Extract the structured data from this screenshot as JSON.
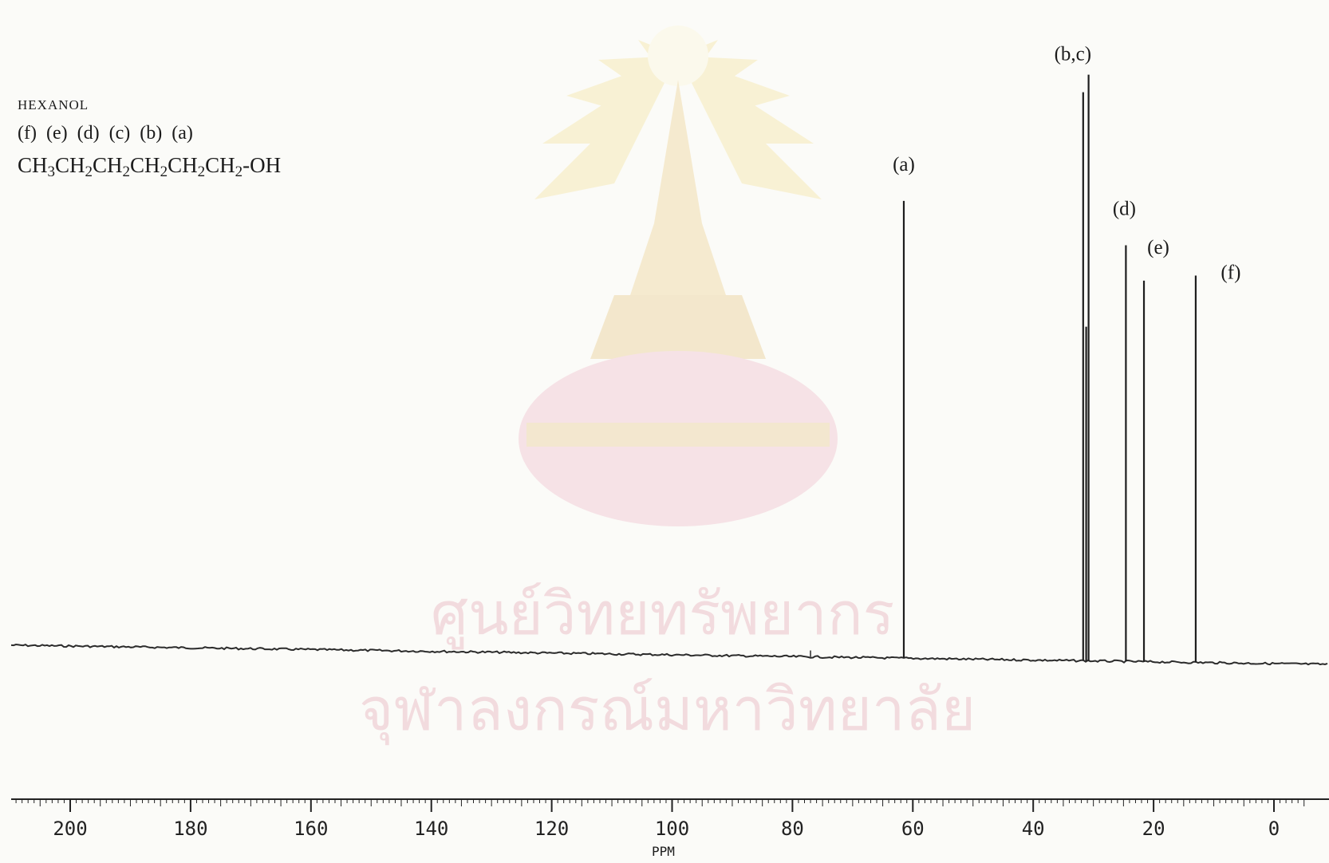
{
  "compound": {
    "name": "HEXANOL",
    "carbon_labels": [
      "(f)",
      "(e)",
      "(d)",
      "(c)",
      "(b)",
      "(a)"
    ],
    "formula_parts": [
      {
        "t": "CH"
      },
      {
        "sub": "3"
      },
      {
        "t": "CH"
      },
      {
        "sub": "2"
      },
      {
        "t": "CH"
      },
      {
        "sub": "2"
      },
      {
        "t": "CH"
      },
      {
        "sub": "2"
      },
      {
        "t": "CH"
      },
      {
        "sub": "2"
      },
      {
        "t": "CH"
      },
      {
        "sub": "2"
      },
      {
        "t": "-OH"
      }
    ]
  },
  "watermark": {
    "line1": "ศูนย์วิทยทรัพยากร",
    "line2": "จุฬาลงกรณ์มหาวิทยาลัย",
    "color": "#e9b6c0"
  },
  "chart_data": {
    "type": "line",
    "xlabel": "PPM",
    "xlim": [
      210,
      -5
    ],
    "x_reversed": true,
    "x_ticks": [
      200,
      180,
      160,
      140,
      120,
      100,
      80,
      60,
      40,
      20,
      0
    ],
    "baseline_tilt": "slopes slightly downward toward 0 ppm",
    "peaks": [
      {
        "label": "(a)",
        "ppm": 61.5,
        "rel_intensity": 0.78
      },
      {
        "label": "(b,c)",
        "ppm": 31.7,
        "rel_intensity": 0.97
      },
      {
        "label": "",
        "ppm": 31.2,
        "rel_intensity": 0.57
      },
      {
        "label": "",
        "ppm": 30.8,
        "rel_intensity": 1.0
      },
      {
        "label": "(d)",
        "ppm": 24.6,
        "rel_intensity": 0.71
      },
      {
        "label": "(e)",
        "ppm": 21.6,
        "rel_intensity": 0.65
      },
      {
        "label": "(f)",
        "ppm": 13.0,
        "rel_intensity": 0.66
      }
    ],
    "small_features": [
      {
        "ppm": 77.0,
        "rel_intensity": 0.01
      }
    ]
  }
}
